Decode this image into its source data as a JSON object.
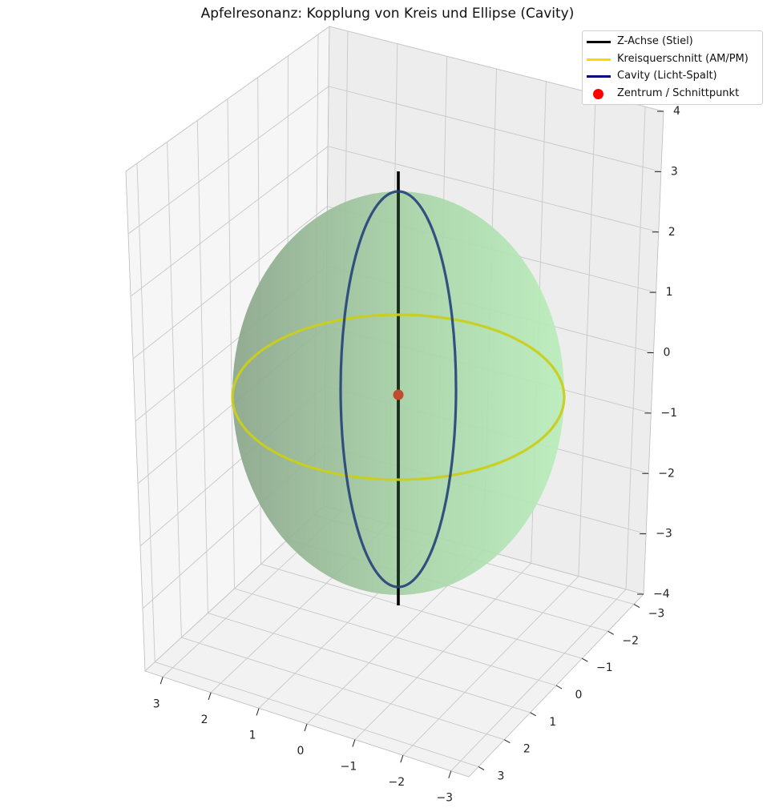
{
  "chart_data": {
    "type": "3d-surface",
    "title": "Apfelresonanz: Kopplung von Kreis und Ellipse (Cavity)",
    "xlabel": "",
    "ylabel": "",
    "zlabel": "",
    "xlim": [
      -3,
      3
    ],
    "ylim": [
      -3,
      3
    ],
    "zlim": [
      -4,
      4
    ],
    "x_ticks": [
      "3",
      "2",
      "1",
      "0",
      "−1",
      "−2",
      "−3"
    ],
    "y_ticks": [
      "−3",
      "−2",
      "−1",
      "0",
      "1",
      "2",
      "3"
    ],
    "z_ticks": [
      "4",
      "3",
      "2",
      "1",
      "0",
      "−1",
      "−2",
      "−3",
      "−4"
    ],
    "grid": true,
    "legend_position": "top-right",
    "surface": {
      "name": "",
      "shape": "ellipsoid",
      "radius_xy": 3,
      "semi_axis_z": 3.5,
      "color": "#90ee90"
    },
    "series": [
      {
        "name": "Z-Achse (Stiel)",
        "kind": "line",
        "color": "#000000",
        "points": [
          [
            0,
            0,
            -3.8
          ],
          [
            0,
            0,
            3.8
          ]
        ]
      },
      {
        "name": "Kreisquerschnitt (AM/PM)",
        "kind": "circle",
        "color": "#ffd700",
        "center": [
          0,
          0,
          0
        ],
        "radius": 3
      },
      {
        "name": "Cavity (Licht-Spalt)",
        "kind": "ellipse",
        "color": "#000080",
        "center": [
          0,
          0,
          0
        ],
        "semi_axis_y": 1,
        "semi_axis_z": 3.5
      },
      {
        "name": "Zentrum / Schnittpunkt",
        "kind": "point",
        "color": "#ff0000",
        "points": [
          [
            0,
            0,
            0
          ]
        ]
      }
    ]
  }
}
